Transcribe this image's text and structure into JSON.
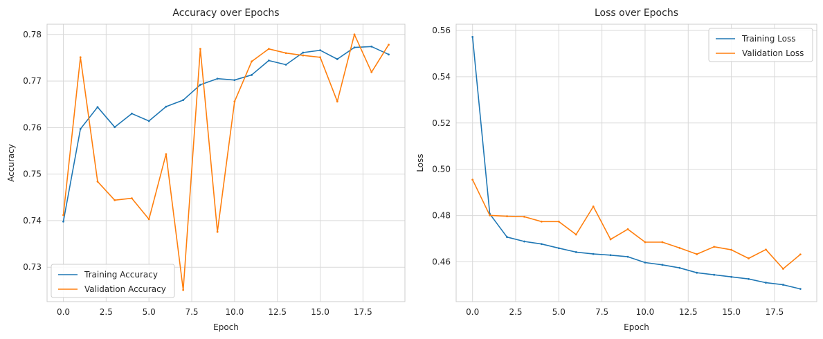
{
  "chart_data": [
    {
      "type": "line",
      "title": "Accuracy over Epochs",
      "xlabel": "Epoch",
      "ylabel": "Accuracy",
      "xlim": [
        -0.95,
        19.95
      ],
      "ylim": [
        0.7226,
        0.7822
      ],
      "xticks": [
        0.0,
        2.5,
        5.0,
        7.5,
        10.0,
        12.5,
        15.0,
        17.5
      ],
      "xtick_labels": [
        "0.0",
        "2.5",
        "5.0",
        "7.5",
        "10.0",
        "12.5",
        "15.0",
        "17.5"
      ],
      "yticks": [
        0.73,
        0.74,
        0.75,
        0.76,
        0.77,
        0.78
      ],
      "ytick_labels": [
        "0.73",
        "0.74",
        "0.75",
        "0.76",
        "0.77",
        "0.78"
      ],
      "grid": true,
      "legend_position": "bottom-left",
      "x": [
        0,
        1,
        2,
        3,
        4,
        5,
        6,
        7,
        8,
        9,
        10,
        11,
        12,
        13,
        14,
        15,
        16,
        17,
        18,
        19
      ],
      "series": [
        {
          "name": "Training Accuracy",
          "color": "#1f77b4",
          "values": [
            0.7398,
            0.7597,
            0.7644,
            0.7601,
            0.763,
            0.7614,
            0.7645,
            0.7659,
            0.7692,
            0.7705,
            0.7702,
            0.7713,
            0.7744,
            0.7735,
            0.7761,
            0.7766,
            0.7747,
            0.7772,
            0.7774,
            0.7757
          ]
        },
        {
          "name": "Validation Accuracy",
          "color": "#ff7f0e",
          "values": [
            0.7412,
            0.7751,
            0.7484,
            0.7444,
            0.7448,
            0.7403,
            0.7543,
            0.7251,
            0.7769,
            0.7376,
            0.7656,
            0.7742,
            0.7769,
            0.776,
            0.7755,
            0.7751,
            0.7656,
            0.78,
            0.7719,
            0.7778
          ]
        }
      ]
    },
    {
      "type": "line",
      "title": "Loss over Epochs",
      "xlabel": "Epoch",
      "ylabel": "Loss",
      "xlim": [
        -0.95,
        19.95
      ],
      "ylim": [
        0.4428,
        0.5627
      ],
      "xticks": [
        0.0,
        2.5,
        5.0,
        7.5,
        10.0,
        12.5,
        15.0,
        17.5
      ],
      "xtick_labels": [
        "0.0",
        "2.5",
        "5.0",
        "7.5",
        "10.0",
        "12.5",
        "15.0",
        "17.5"
      ],
      "yticks": [
        0.46,
        0.48,
        0.5,
        0.52,
        0.54,
        0.56
      ],
      "ytick_labels": [
        "0.46",
        "0.48",
        "0.50",
        "0.52",
        "0.54",
        "0.56"
      ],
      "grid": true,
      "legend_position": "top-right",
      "x": [
        0,
        1,
        2,
        3,
        4,
        5,
        6,
        7,
        8,
        9,
        10,
        11,
        12,
        13,
        14,
        15,
        16,
        17,
        18,
        19
      ],
      "series": [
        {
          "name": "Training Loss",
          "color": "#1f77b4",
          "values": [
            0.5572,
            0.4807,
            0.4707,
            0.4688,
            0.4677,
            0.4659,
            0.4642,
            0.4634,
            0.4629,
            0.4622,
            0.4597,
            0.4587,
            0.4574,
            0.4553,
            0.4544,
            0.4535,
            0.4526,
            0.451,
            0.4501,
            0.4483
          ]
        },
        {
          "name": "Validation Loss",
          "color": "#ff7f0e",
          "values": [
            0.4955,
            0.4801,
            0.4797,
            0.4795,
            0.4774,
            0.4774,
            0.4718,
            0.4839,
            0.4697,
            0.4741,
            0.4685,
            0.4685,
            0.466,
            0.4633,
            0.4665,
            0.4652,
            0.4615,
            0.4653,
            0.457,
            0.4632
          ]
        }
      ]
    }
  ]
}
